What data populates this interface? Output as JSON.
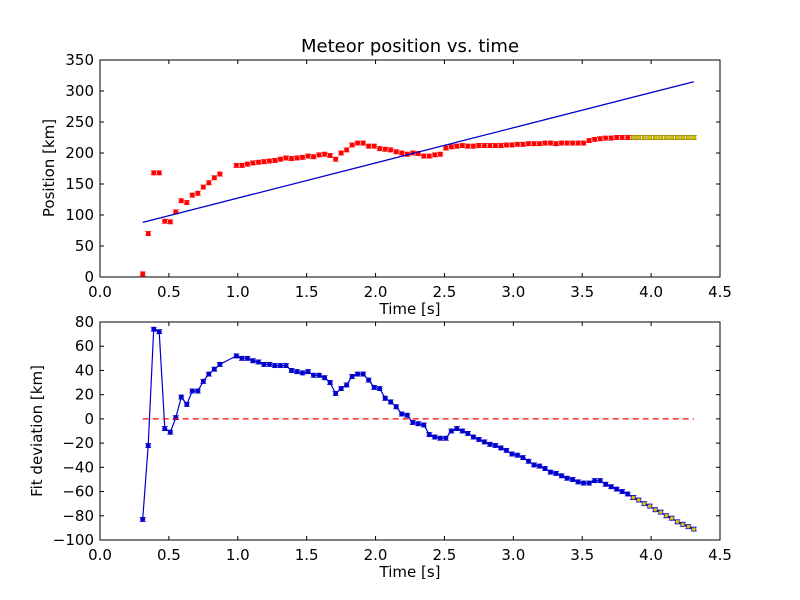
{
  "chart_data": [
    {
      "type": "scatter",
      "title": "Meteor position vs. time",
      "xlabel": "Time [s]",
      "ylabel": "Position [km]",
      "xlim": [
        0.0,
        4.5
      ],
      "ylim": [
        0,
        350
      ],
      "xticks": [
        "0.0",
        "0.5",
        "1.0",
        "1.5",
        "2.0",
        "2.5",
        "3.0",
        "3.5",
        "4.0",
        "4.5"
      ],
      "yticks": [
        "0",
        "50",
        "100",
        "150",
        "200",
        "250",
        "300",
        "350"
      ],
      "grid": false,
      "series": [
        {
          "kind": "points",
          "color": "#ff0000",
          "x": [
            0.31,
            0.35,
            0.39,
            0.43,
            0.47,
            0.51,
            0.55,
            0.59,
            0.63,
            0.67,
            0.71,
            0.75,
            0.79,
            0.83,
            0.87,
            0.99,
            1.03,
            1.07,
            1.11,
            1.15,
            1.19,
            1.23,
            1.27,
            1.31,
            1.35,
            1.39,
            1.43,
            1.47,
            1.51,
            1.55,
            1.59,
            1.63,
            1.67,
            1.71,
            1.75,
            1.79,
            1.83,
            1.87,
            1.91,
            1.95,
            1.99,
            2.03,
            2.07,
            2.11,
            2.15,
            2.19,
            2.23,
            2.27,
            2.31,
            2.35,
            2.39,
            2.43,
            2.47,
            2.51,
            2.55,
            2.59,
            2.63,
            2.67,
            2.71,
            2.75,
            2.79,
            2.83,
            2.87,
            2.91,
            2.95,
            2.99,
            3.03,
            3.07,
            3.11,
            3.15,
            3.19,
            3.23,
            3.27,
            3.31,
            3.35,
            3.39,
            3.43,
            3.47,
            3.51,
            3.55,
            3.59,
            3.63,
            3.67,
            3.71,
            3.75,
            3.79,
            3.83,
            3.87
          ],
          "y": [
            5,
            70,
            168,
            168,
            90,
            89,
            105,
            123,
            120,
            132,
            135,
            145,
            152,
            160,
            166,
            180,
            180,
            182,
            184,
            185,
            186,
            187,
            188,
            190,
            192,
            191,
            192,
            193,
            195,
            194,
            197,
            198,
            196,
            190,
            200,
            205,
            213,
            216,
            216,
            211,
            211,
            207,
            206,
            205,
            202,
            200,
            198,
            200,
            199,
            195,
            195,
            197,
            198,
            208,
            210,
            211,
            212,
            211,
            211,
            212,
            212,
            212,
            212,
            212,
            213,
            213,
            214,
            214,
            215,
            215,
            215,
            216,
            216,
            215,
            216,
            216,
            216,
            216,
            216,
            220,
            222,
            223,
            224,
            224,
            225,
            225,
            225,
            225
          ]
        },
        {
          "kind": "points",
          "color": "#ddbb00",
          "x": [
            3.87,
            3.91,
            3.95,
            3.99,
            4.03,
            4.07,
            4.11,
            4.15,
            4.19,
            4.23,
            4.27,
            4.31
          ],
          "y": [
            225,
            225,
            225,
            225,
            225,
            225,
            225,
            225,
            225,
            225,
            225,
            225
          ]
        },
        {
          "kind": "line",
          "color": "#0000cc",
          "x": [
            0.31,
            4.31
          ],
          "y": [
            88,
            315
          ]
        }
      ]
    },
    {
      "type": "line",
      "title": "",
      "xlabel": "Time [s]",
      "ylabel": "Fit deviation [km]",
      "xlim": [
        0.0,
        4.5
      ],
      "ylim": [
        -100,
        80
      ],
      "xticks": [
        "0.0",
        "0.5",
        "1.0",
        "1.5",
        "2.0",
        "2.5",
        "3.0",
        "3.5",
        "4.0",
        "4.5"
      ],
      "yticks": [
        "−100",
        "−80",
        "−60",
        "−40",
        "−20",
        "0",
        "20",
        "40",
        "60",
        "80"
      ],
      "grid": false,
      "series": [
        {
          "kind": "line-markers",
          "color": "#0000cc",
          "x": [
            0.31,
            0.35,
            0.39,
            0.43,
            0.47,
            0.51,
            0.55,
            0.59,
            0.63,
            0.67,
            0.71,
            0.75,
            0.79,
            0.83,
            0.87,
            0.99,
            1.03,
            1.07,
            1.11,
            1.15,
            1.19,
            1.23,
            1.27,
            1.31,
            1.35,
            1.39,
            1.43,
            1.47,
            1.51,
            1.55,
            1.59,
            1.63,
            1.67,
            1.71,
            1.75,
            1.79,
            1.83,
            1.87,
            1.91,
            1.95,
            1.99,
            2.03,
            2.07,
            2.11,
            2.15,
            2.19,
            2.23,
            2.27,
            2.31,
            2.35,
            2.39,
            2.43,
            2.47,
            2.51,
            2.55,
            2.59,
            2.63,
            2.67,
            2.71,
            2.75,
            2.79,
            2.83,
            2.87,
            2.91,
            2.95,
            2.99,
            3.03,
            3.07,
            3.11,
            3.15,
            3.19,
            3.23,
            3.27,
            3.31,
            3.35,
            3.39,
            3.43,
            3.47,
            3.51,
            3.55,
            3.59,
            3.63,
            3.67,
            3.71,
            3.75,
            3.79,
            3.83,
            3.87
          ],
          "y": [
            -83,
            -22,
            74,
            72,
            -8,
            -11,
            1,
            18,
            12,
            23,
            23,
            31,
            37,
            41,
            45,
            52,
            50,
            50,
            48,
            47,
            45,
            45,
            44,
            44,
            44,
            40,
            39,
            38,
            39,
            36,
            36,
            34,
            30,
            21,
            25,
            28,
            35,
            37,
            37,
            32,
            26,
            25,
            17,
            14,
            10,
            4,
            3,
            -3,
            -4,
            -5,
            -13,
            -15,
            -16,
            -16,
            -10,
            -8,
            -10,
            -12,
            -15,
            -17,
            -19,
            -21,
            -22,
            -24,
            -26,
            -29,
            -30,
            -32,
            -35,
            -38,
            -39,
            -41,
            -44,
            -45,
            -47,
            -49,
            -50,
            -52,
            -53,
            -53,
            -51,
            -51,
            -54,
            -56,
            -58,
            -60,
            -62,
            -65
          ]
        },
        {
          "kind": "line-markers",
          "color": "#ddbb00",
          "edge": "#0000cc",
          "x": [
            3.87,
            3.91,
            3.95,
            3.99,
            4.03,
            4.07,
            4.11,
            4.15,
            4.19,
            4.23,
            4.27,
            4.31
          ],
          "y": [
            -65,
            -67,
            -70,
            -72,
            -75,
            -77,
            -80,
            -82,
            -85,
            -87,
            -89,
            -91
          ]
        },
        {
          "kind": "dashed",
          "color": "#ff0000",
          "x": [
            0.31,
            4.31
          ],
          "y": [
            0,
            0
          ]
        }
      ]
    }
  ]
}
